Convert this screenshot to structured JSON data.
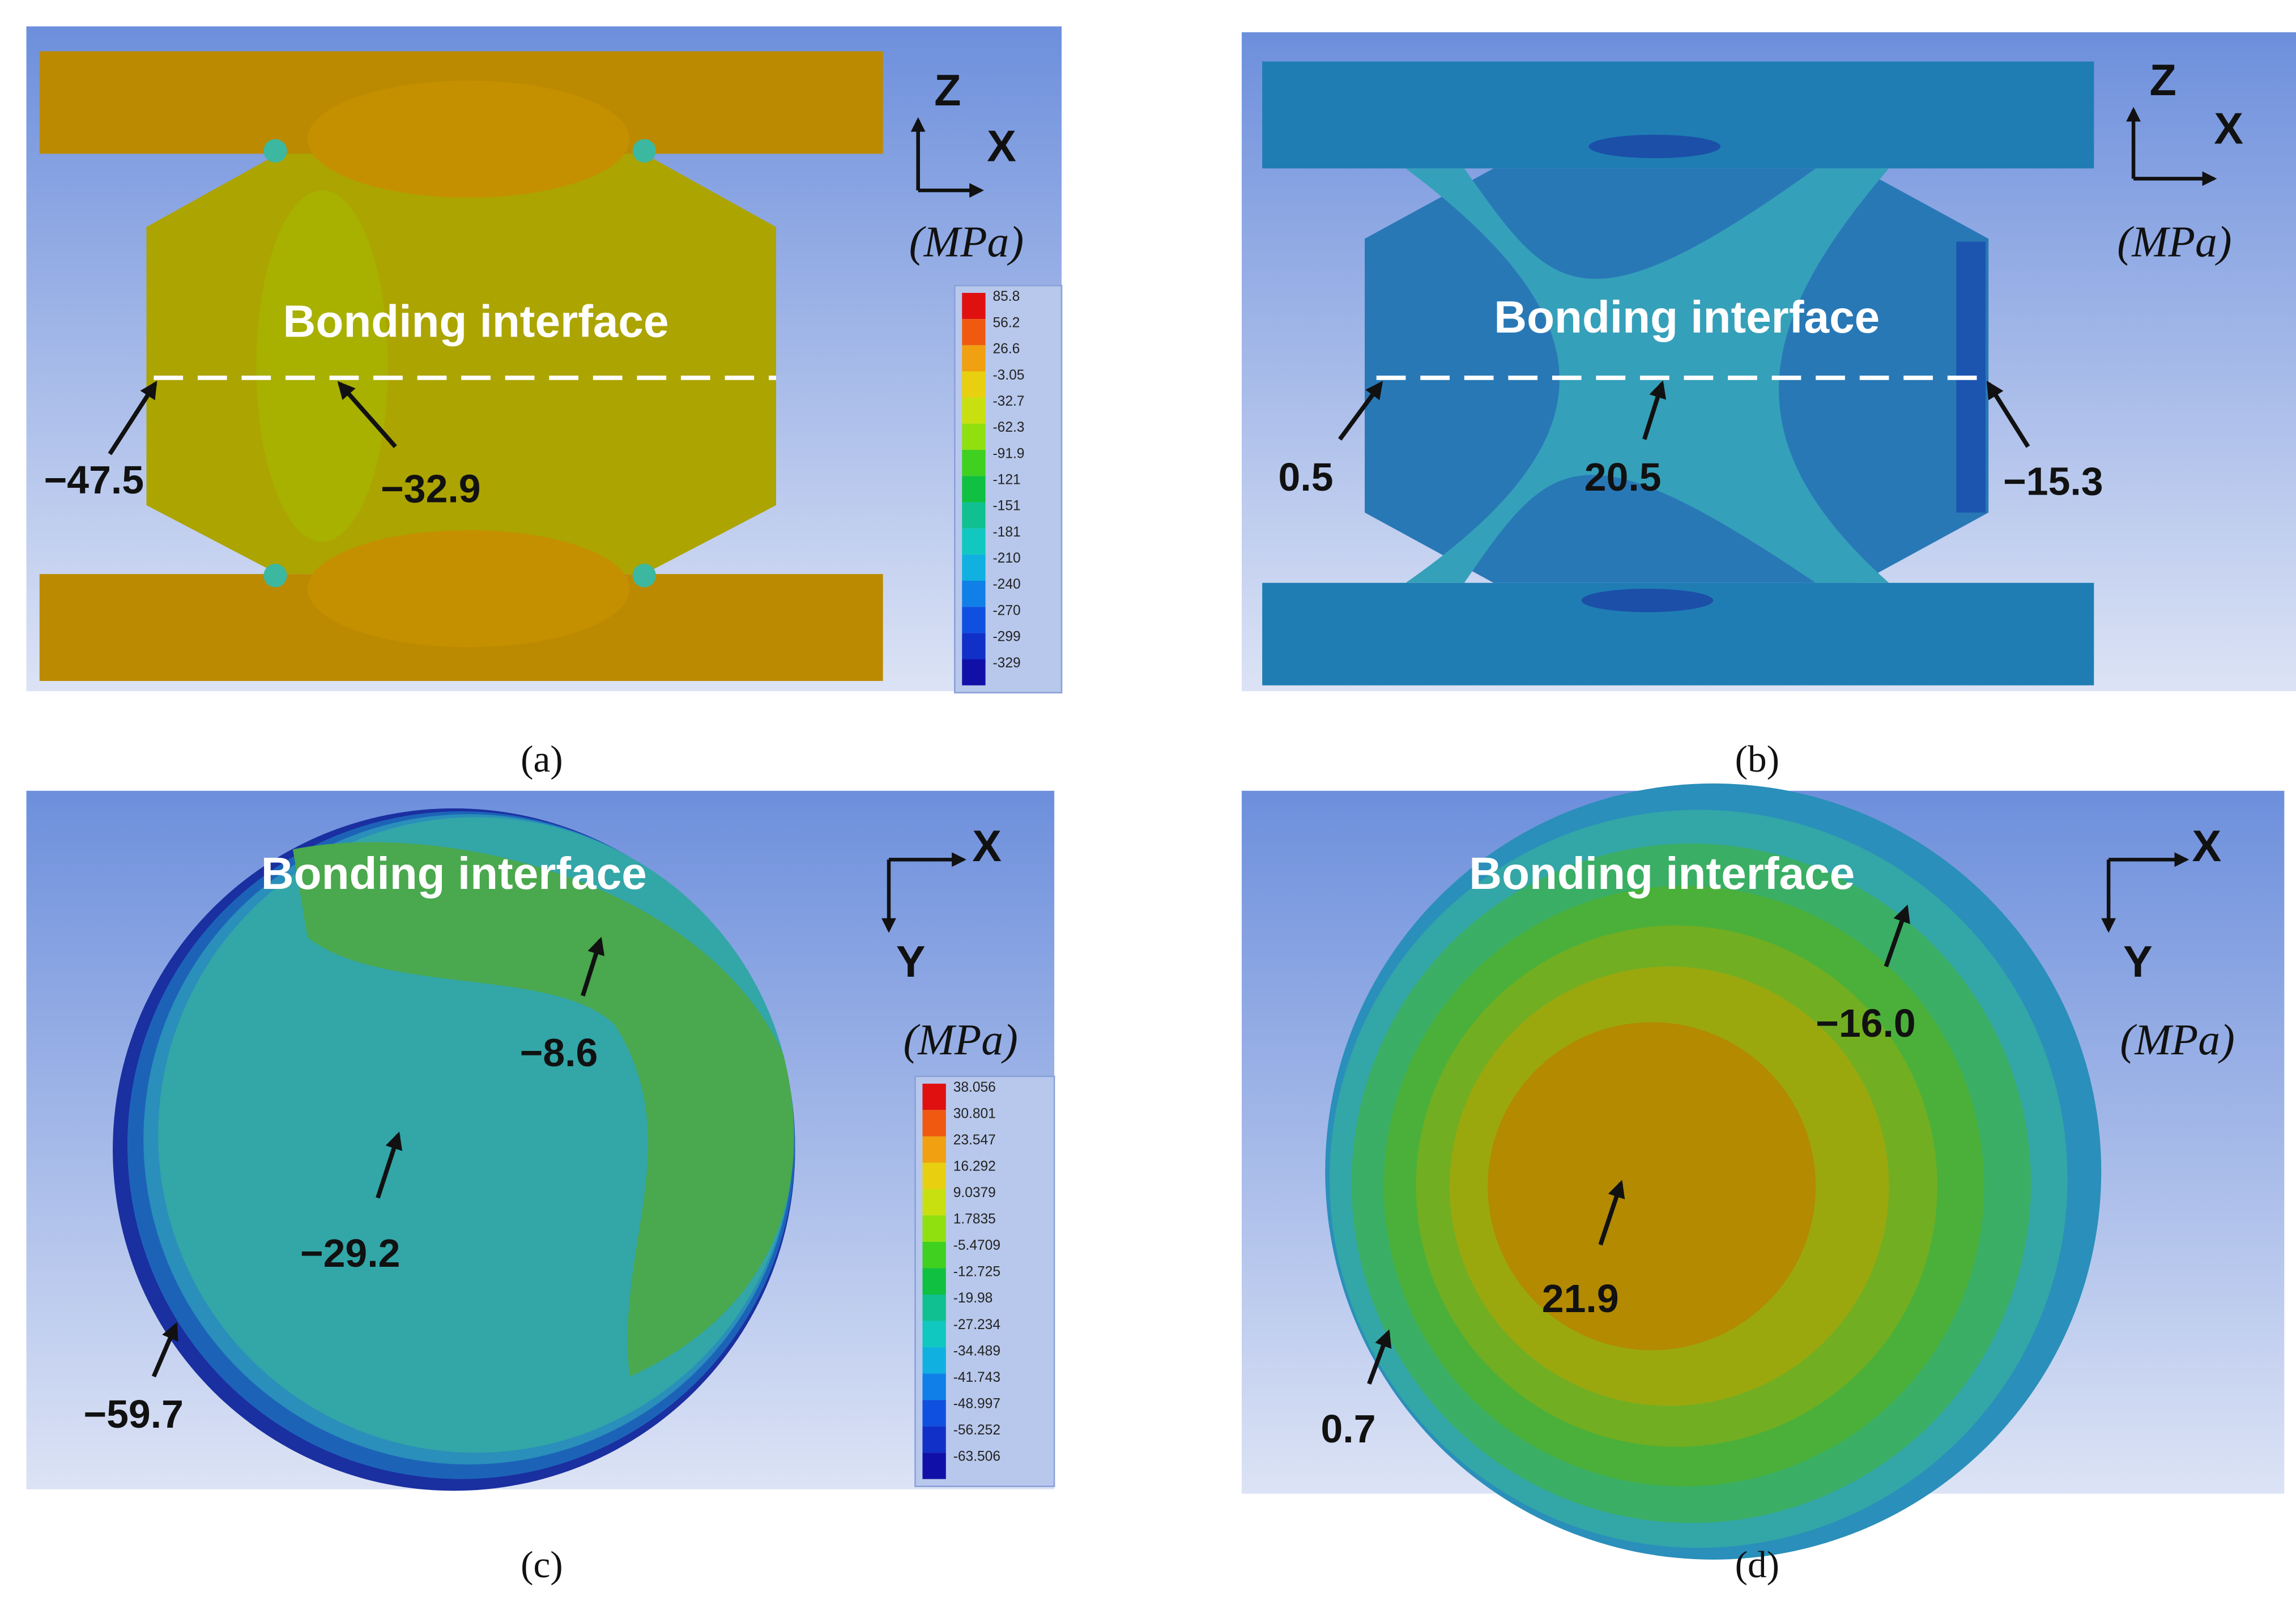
{
  "panels": [
    {
      "label": "(a)",
      "interface": "Bonding interface",
      "unit": "(MPa)",
      "axes": [
        "Z",
        "X"
      ],
      "annotations": [
        "−47.5",
        "−32.9"
      ],
      "legend": [
        "85.8",
        "56.2",
        "26.6",
        "-3.05",
        "-32.7",
        "-62.3",
        "-91.9",
        "-121",
        "-151",
        "-181",
        "-210",
        "-240",
        "-270",
        "-299",
        "-329"
      ]
    },
    {
      "label": "(b)",
      "interface": "Bonding interface",
      "unit": "(MPa)",
      "axes": [
        "Z",
        "X"
      ],
      "annotations": [
        "0.5",
        "20.5",
        "−15.3"
      ]
    },
    {
      "label": "(c)",
      "interface": "Bonding interface",
      "unit": "(MPa)",
      "axes": [
        "X",
        "Y"
      ],
      "annotations": [
        "−8.6",
        "−29.2",
        "−59.7"
      ],
      "legend": [
        "38.056",
        "30.801",
        "23.547",
        "16.292",
        "9.0379",
        "1.7835",
        "-5.4709",
        "-12.725",
        "-19.98",
        "-27.234",
        "-34.489",
        "-41.743",
        "-48.997",
        "-56.252",
        "-63.506"
      ]
    },
    {
      "label": "(d)",
      "interface": "Bonding interface",
      "unit": "(MPa)",
      "axes": [
        "X",
        "Y"
      ],
      "annotations": [
        "−16.0",
        "21.9",
        "0.7"
      ]
    }
  ]
}
